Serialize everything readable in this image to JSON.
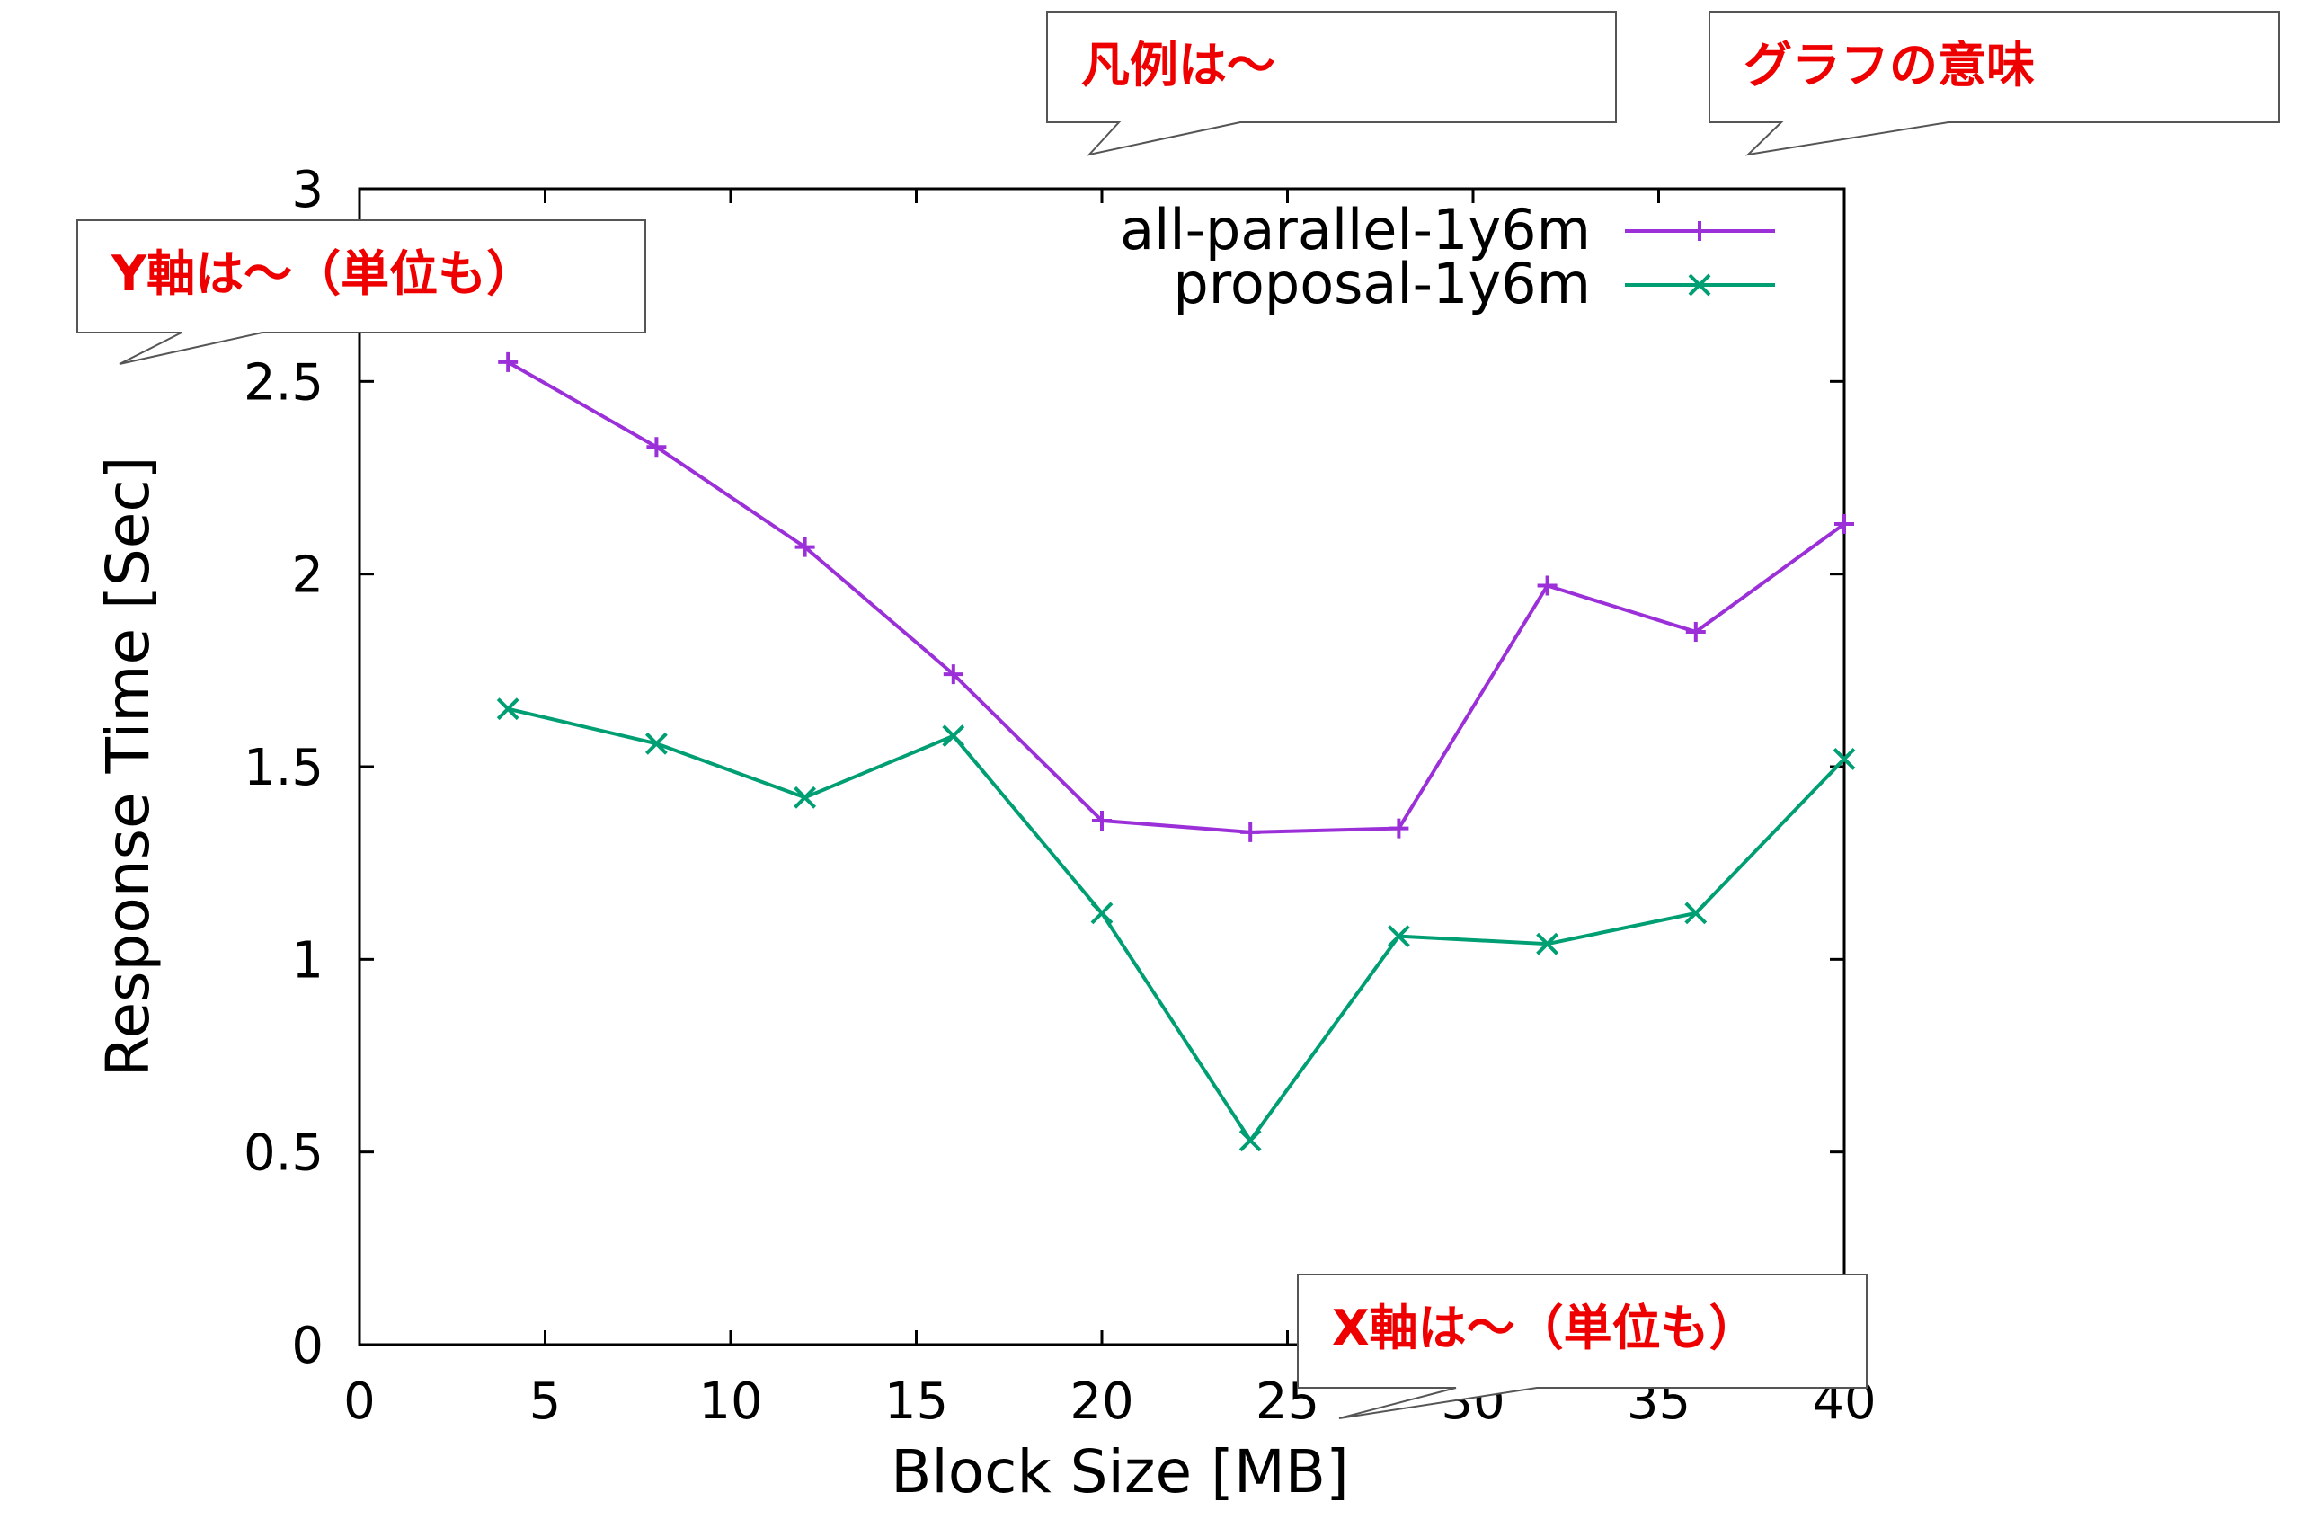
{
  "chart_data": {
    "type": "line",
    "title": "",
    "xlabel": "Block Size [MB]",
    "ylabel": "Response Time [Sec]",
    "xlim": [
      0,
      40
    ],
    "ylim": [
      0,
      3
    ],
    "xticks": [
      0,
      5,
      10,
      15,
      20,
      25,
      30,
      35,
      40
    ],
    "yticks": [
      0,
      0.5,
      1,
      1.5,
      2,
      2.5,
      3
    ],
    "xtick_labels": [
      "0",
      "5",
      "10",
      "15",
      "20",
      "25",
      "30",
      "35",
      "40"
    ],
    "ytick_labels": [
      "0",
      "0.5",
      "1",
      "1.5",
      "2",
      "2.5",
      "3"
    ],
    "grid": false,
    "legend_position": "top-right",
    "x": [
      4,
      8,
      12,
      16,
      20,
      24,
      28,
      32,
      36,
      40
    ],
    "series": [
      {
        "name": "all-parallel-1y6m",
        "color": "#9b30d9",
        "marker": "plus",
        "values": [
          2.55,
          2.33,
          2.07,
          1.74,
          1.36,
          1.33,
          1.34,
          1.97,
          1.85,
          2.13
        ]
      },
      {
        "name": "proposal-1y6m",
        "color": "#009e73",
        "marker": "cross",
        "values": [
          1.65,
          1.56,
          1.42,
          1.58,
          1.12,
          0.53,
          1.06,
          1.04,
          1.12,
          1.52
        ]
      }
    ]
  },
  "callouts": [
    {
      "id": "legend",
      "text": "凡例は〜"
    },
    {
      "id": "meaning",
      "text": "グラフの意味"
    },
    {
      "id": "yaxis",
      "text": "Y軸は〜（単位も）"
    },
    {
      "id": "xaxis",
      "text": "X軸は〜（単位も）"
    }
  ]
}
